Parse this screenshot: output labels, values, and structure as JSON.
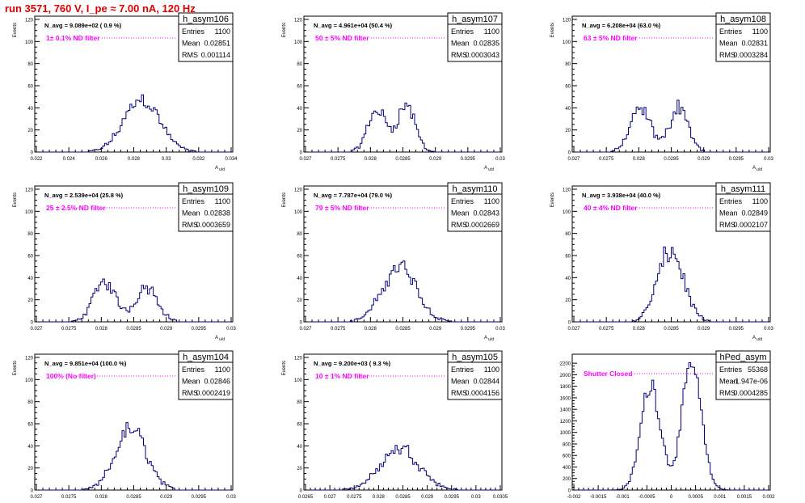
{
  "page": {
    "run_title": "run 3571,   760 V, I_pe ≈ 7.00 nA, 120 Hz"
  },
  "colors": {
    "histogram": "#00007a",
    "annotation": "#ff00ff",
    "run_title": "#e00000",
    "frame": "#000000"
  },
  "chart_data": [
    {
      "type": "bar",
      "histogram": "h_asym106",
      "stats": {
        "entries_label": "Entries",
        "entries": "1100",
        "mean_label": "Mean",
        "mean": "0.02851",
        "rms_label": "RMS",
        "rms": "0.001114"
      },
      "navg": "N_avg = 9.089e+02 ( 0.9 %)",
      "filter": "1± 0.1% ND filter",
      "ylabel": "Events",
      "xlabel": "A_u/d",
      "xlim": [
        0.022,
        0.034
      ],
      "ylim": [
        0,
        120
      ],
      "xticks": [
        "0.022",
        "0.024",
        "0.026",
        "0.028",
        "0.03",
        "0.032",
        "0.034"
      ],
      "yticks": [
        "0",
        "20",
        "40",
        "60",
        "80",
        "100",
        "120"
      ],
      "shape": {
        "components": [
          [
            0.0285,
            0.0011,
            48
          ]
        ]
      }
    },
    {
      "type": "bar",
      "histogram": "h_asym107",
      "stats": {
        "entries_label": "Entries",
        "entries": "1100",
        "mean_label": "Mean",
        "mean": "0.02835",
        "rms_label": "RMS",
        "rms": "0.0003043"
      },
      "navg": "N_avg = 4.961e+04 (50.4 %)",
      "filter": "50 ± 5% ND filter",
      "ylabel": "Events",
      "xlabel": "A_u/d",
      "xlim": [
        0.027,
        0.03
      ],
      "ylim": [
        0,
        120
      ],
      "xticks": [
        "0.027",
        "0.0275",
        "0.028",
        "0.0285",
        "0.029",
        "0.0295",
        "0.03"
      ],
      "yticks": [
        "0",
        "20",
        "40",
        "60",
        "80",
        "100",
        "120"
      ],
      "shape": {
        "components": [
          [
            0.0281,
            0.00014,
            38
          ],
          [
            0.02855,
            0.00014,
            42
          ]
        ]
      }
    },
    {
      "type": "bar",
      "histogram": "h_asym108",
      "stats": {
        "entries_label": "Entries",
        "entries": "1100",
        "mean_label": "Mean",
        "mean": "0.02831",
        "rms_label": "RMS",
        "rms": "0.0003284"
      },
      "navg": "N_avg = 6.208e+04 (63.0 %)",
      "filter": "63 ± 5% ND filter",
      "ylabel": "Events",
      "xlabel": "A_u/d",
      "xlim": [
        0.027,
        0.03
      ],
      "ylim": [
        0,
        120
      ],
      "xticks": [
        "0.027",
        "0.0275",
        "0.028",
        "0.0285",
        "0.029",
        "0.0295",
        "0.03"
      ],
      "yticks": [
        "0",
        "20",
        "40",
        "60",
        "80",
        "100",
        "120"
      ],
      "shape": {
        "components": [
          [
            0.02803,
            0.00016,
            38
          ],
          [
            0.02862,
            0.00014,
            42
          ]
        ]
      }
    },
    {
      "type": "bar",
      "histogram": "h_asym109",
      "stats": {
        "entries_label": "Entries",
        "entries": "1100",
        "mean_label": "Mean",
        "mean": "0.02838",
        "rms_label": "RMS",
        "rms": "0.0003659"
      },
      "navg": "N_avg = 2.539e+04 (25.8 %)",
      "filter": "25 ± 2.5% ND filter",
      "ylabel": "Events",
      "xlabel": "A_u/d",
      "xlim": [
        0.027,
        0.03
      ],
      "ylim": [
        0,
        120
      ],
      "xticks": [
        "0.027",
        "0.0275",
        "0.028",
        "0.0285",
        "0.029",
        "0.0295",
        "0.03"
      ],
      "yticks": [
        "0",
        "20",
        "40",
        "60",
        "80",
        "100",
        "120"
      ],
      "shape": {
        "components": [
          [
            0.02805,
            0.00017,
            36
          ],
          [
            0.0287,
            0.00017,
            32
          ]
        ]
      }
    },
    {
      "type": "bar",
      "histogram": "h_asym110",
      "stats": {
        "entries_label": "Entries",
        "entries": "1100",
        "mean_label": "Mean",
        "mean": "0.02843",
        "rms_label": "RMS",
        "rms": "0.0002669"
      },
      "navg": "N_avg = 7.787e+04 (79.0 %)",
      "filter": "79 ± 5% ND filter",
      "ylabel": "Events",
      "xlabel": "A_u/d",
      "xlim": [
        0.027,
        0.03
      ],
      "ylim": [
        0,
        120
      ],
      "xticks": [
        "0.027",
        "0.0275",
        "0.028",
        "0.0285",
        "0.029",
        "0.0295",
        "0.03"
      ],
      "yticks": [
        "0",
        "20",
        "40",
        "60",
        "80",
        "100",
        "120"
      ],
      "shape": {
        "components": [
          [
            0.02845,
            0.00026,
            50
          ]
        ]
      }
    },
    {
      "type": "bar",
      "histogram": "h_asym111",
      "stats": {
        "entries_label": "Entries",
        "entries": "1100",
        "mean_label": "Mean",
        "mean": "0.02849",
        "rms_label": "RMS",
        "rms": "0.0002107"
      },
      "navg": "N_avg = 3.938e+04 (40.0 %)",
      "filter": "40 ± 4% ND filter",
      "ylabel": "Events",
      "xlabel": "A_u/d",
      "xlim": [
        0.027,
        0.03
      ],
      "ylim": [
        0,
        120
      ],
      "xticks": [
        "0.027",
        "0.0275",
        "0.028",
        "0.0285",
        "0.029",
        "0.0295",
        "0.03"
      ],
      "yticks": [
        "0",
        "20",
        "40",
        "60",
        "80",
        "100",
        "120"
      ],
      "shape": {
        "components": [
          [
            0.02849,
            0.0002,
            64
          ]
        ]
      }
    },
    {
      "type": "bar",
      "histogram": "h_asym104",
      "stats": {
        "entries_label": "Entries",
        "entries": "1100",
        "mean_label": "Mean",
        "mean": "0.02846",
        "rms_label": "RMS",
        "rms": "0.0002419"
      },
      "navg": "N_avg = 9.851e+04 (100.0 %)",
      "filter": "100% (No filter)",
      "ylabel": "Events",
      "xlabel": "A_u/d",
      "xlim": [
        0.027,
        0.03
      ],
      "ylim": [
        0,
        120
      ],
      "xticks": [
        "0.027",
        "0.0275",
        "0.028",
        "0.0285",
        "0.029",
        "0.0295",
        "0.03"
      ],
      "yticks": [
        "0",
        "20",
        "40",
        "60",
        "80",
        "100",
        "120"
      ],
      "shape": {
        "components": [
          [
            0.02846,
            0.00024,
            55
          ]
        ]
      }
    },
    {
      "type": "bar",
      "histogram": "h_asym105",
      "stats": {
        "entries_label": "Entries",
        "entries": "1100",
        "mean_label": "Mean",
        "mean": "0.02844",
        "rms_label": "RMS",
        "rms": "0.0004156"
      },
      "navg": "N_avg = 9.200e+03 ( 9.3 %)",
      "filter": "10 ± 1% ND filter",
      "ylabel": "Events",
      "xlabel": "A_u/d",
      "xlim": [
        0.0265,
        0.0305
      ],
      "ylim": [
        0,
        120
      ],
      "xticks": [
        "0.0265",
        "0.027",
        "0.0275",
        "0.028",
        "0.0285",
        "0.029",
        "0.0295",
        "0.03",
        "0.0305"
      ],
      "yticks": [
        "0",
        "20",
        "40",
        "60",
        "80",
        "100",
        "120"
      ],
      "shape": {
        "components": [
          [
            0.02844,
            0.0004,
            38
          ]
        ]
      }
    },
    {
      "type": "bar",
      "histogram": "hPed_asym",
      "stats": {
        "entries_label": "Entries",
        "entries": "55368",
        "mean_label": "Mean",
        "mean": "-1.947e-06",
        "rms_label": "RMS",
        "rms": "0.0004285"
      },
      "navg": "",
      "filter": "Shutter Closed",
      "ylabel": "",
      "xlabel": "",
      "xlim": [
        -0.002,
        0.002
      ],
      "ylim": [
        0,
        2300
      ],
      "xticks": [
        "-0.002",
        "-0.0015",
        "-0.001",
        "-0.0005",
        "0",
        "0.0005",
        "0.001",
        "0.0015",
        "0.002"
      ],
      "yticks": [
        "0",
        "200",
        "400",
        "600",
        "800",
        "1000",
        "1200",
        "1400",
        "1600",
        "1800",
        "2000",
        "2200"
      ],
      "shape": {
        "components": [
          [
            -0.00042,
            0.0002,
            1850
          ],
          [
            0.00042,
            0.0002,
            2150
          ]
        ]
      }
    }
  ]
}
